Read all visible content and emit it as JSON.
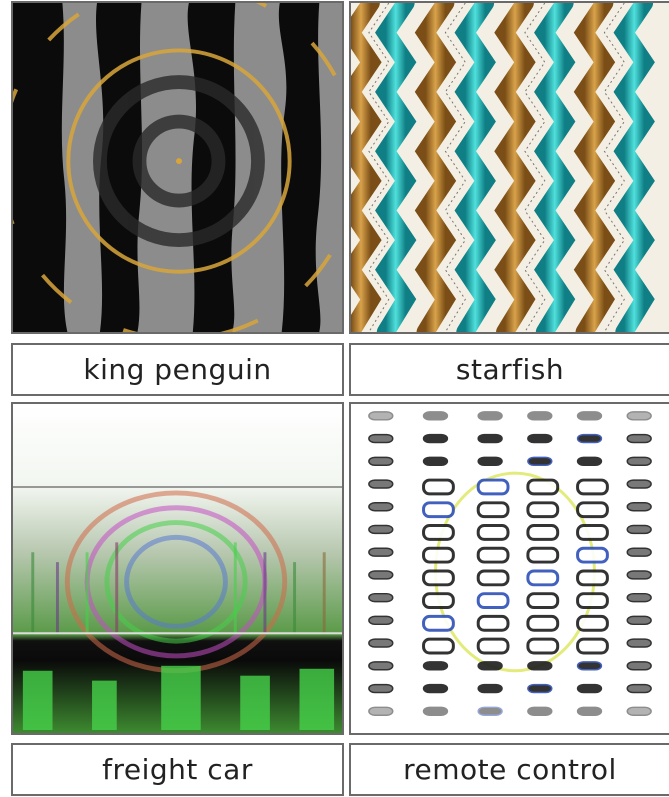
{
  "panels": [
    {
      "label": "king penguin"
    },
    {
      "label": "starfish"
    },
    {
      "label": "freight car"
    },
    {
      "label": "remote control"
    }
  ],
  "colors": {
    "penguin_dark": "#0b0b0b",
    "penguin_gray": "#8c8c8c",
    "penguin_gold": "#d9a53a",
    "starfish_teal": "#2ec4c4",
    "starfish_gold": "#c9912f",
    "freight_green": "#46d14a",
    "remote_dark": "#1e1e1e",
    "remote_blue": "#2e4fb8"
  }
}
